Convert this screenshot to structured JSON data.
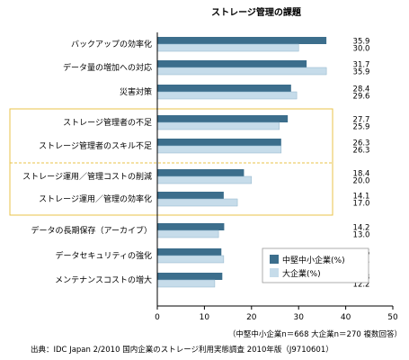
{
  "chart_data": {
    "type": "bar",
    "orientation": "horizontal",
    "title": "ストレージ管理の課題",
    "categories": [
      "バックアップの効率化",
      "データ量の増加への対応",
      "災害対策",
      "ストレージ管理者の不足",
      "ストレージ管理者のスキル不足",
      "ストレージ運用／管理コストの削減",
      "ストレージ運用／管理の効率化",
      "データの長期保存（アーカイブ）",
      "データセキュリティの強化",
      "メンテナンスコストの増大"
    ],
    "series": [
      {
        "name": "中堅中小企業(%)",
        "color": "#3c6e8c",
        "values": [
          35.9,
          31.7,
          28.4,
          27.7,
          26.3,
          18.4,
          14.1,
          14.2,
          13.6,
          13.8
        ],
        "labels": [
          "35.9",
          "31.7",
          "28.4",
          "27.7",
          "26.3",
          "18.4",
          "14.1",
          "14.2",
          "13.6",
          "13.8"
        ]
      },
      {
        "name": "大企業(%)",
        "color": "#c6dcea",
        "values": [
          30.0,
          35.9,
          29.6,
          25.9,
          26.3,
          20.0,
          17.0,
          13.0,
          14.1,
          12.2
        ],
        "labels": [
          "30.0",
          "35.9",
          "29.6",
          "25.9",
          "26.3",
          "20.0",
          "17.0",
          "13.0",
          "14.1",
          "12.2"
        ]
      }
    ],
    "xlim": [
      0,
      50
    ],
    "xticks": [
      "0",
      "10",
      "20",
      "30",
      "40",
      "50"
    ],
    "legend_position": "bottom-right",
    "note": "（中堅中小企業n＝668 大企業n＝270 複数回答）",
    "highlight_groups": [
      [
        3,
        4
      ],
      [
        5,
        6
      ]
    ],
    "highlight_color": "#e9c349",
    "grid": false
  },
  "source": "出典：IDC Japan 2/2010 国内企業のストレージ利用実態調査 2010年版（J9710601）"
}
